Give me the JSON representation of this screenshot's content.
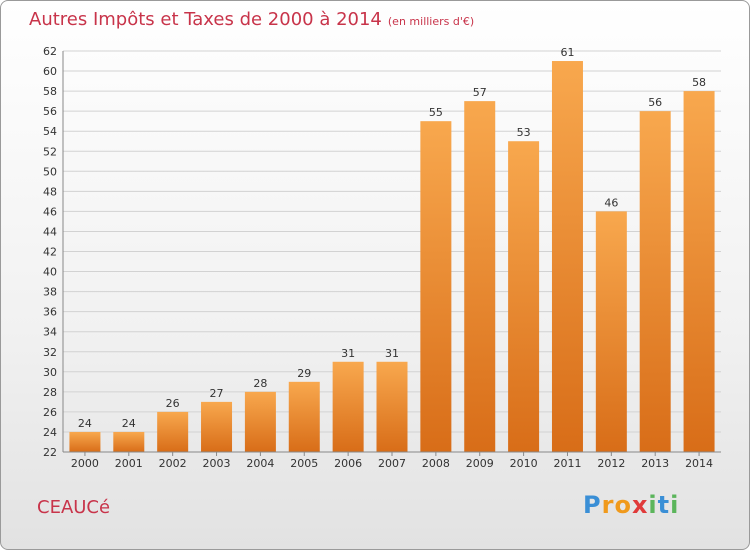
{
  "title": "Autres Impôts et Taxes de 2000 à 2014",
  "subtitle": "(en milliers d'€)",
  "commune": "CEAUCé",
  "logo": {
    "letters": [
      "P",
      "r",
      "o",
      "x",
      "i",
      "t",
      "i"
    ],
    "colors": [
      "#3a8fd6",
      "#f09a1c",
      "#f09a1c",
      "#e03a3a",
      "#5bb55b",
      "#3a8fd6",
      "#5bb55b"
    ]
  },
  "colors": {
    "accent": "#c8344a",
    "bar_light": "#f8a84e",
    "bar_dark": "#d86d18",
    "grid": "#d2d2d2",
    "axis_text": "#333333"
  },
  "chart_data": {
    "type": "bar",
    "title": "Autres Impôts et Taxes de 2000 à 2014",
    "subtitle": "(en milliers d'€)",
    "categories": [
      "2000",
      "2001",
      "2002",
      "2003",
      "2004",
      "2005",
      "2006",
      "2007",
      "2008",
      "2009",
      "2010",
      "2011",
      "2012",
      "2013",
      "2014"
    ],
    "values": [
      24,
      24,
      26,
      27,
      28,
      29,
      31,
      31,
      55,
      57,
      53,
      61,
      46,
      56,
      58
    ],
    "ylim": [
      22,
      62
    ],
    "yticks": [
      22,
      24,
      26,
      28,
      30,
      32,
      34,
      36,
      38,
      40,
      42,
      44,
      46,
      48,
      50,
      52,
      54,
      56,
      58,
      60,
      62
    ],
    "grid": true,
    "legend": "none"
  }
}
